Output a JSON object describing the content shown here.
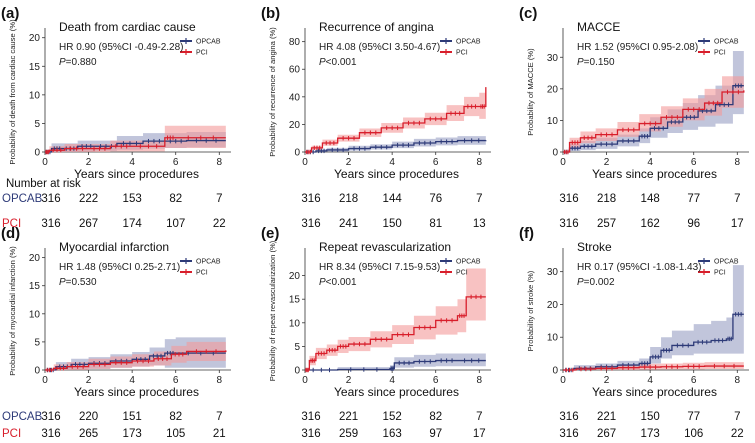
{
  "colors": {
    "opcab": "#2d3a78",
    "opcab_band": "#8e96bd",
    "pci": "#d81e2b",
    "pci_band": "#f39a9a",
    "risk_opcab_label": "#2d3a78",
    "risk_pci_label": "#d81e2b"
  },
  "chart_data": [
    {
      "type": "line",
      "panel_label": "(a)",
      "title": "Death from cardiac cause",
      "ylabel": "Probability of death from cardiac cause (%)",
      "xlabel": "Years since procedures",
      "ylim": [
        0,
        21
      ],
      "yticks": [
        0,
        5,
        10,
        15,
        20
      ],
      "xlim": [
        0,
        8.4
      ],
      "xticks": [
        0,
        2,
        4,
        6,
        8
      ],
      "legend": [
        "OPCAB",
        "PCI"
      ],
      "hr_text": "HR 0.90 (95%CI -0.49-2.28)",
      "p_label": "P",
      "p_value": "=0.880",
      "series": [
        {
          "name": "OPCAB",
          "x": [
            0,
            0.3,
            0.8,
            1.5,
            2.3,
            3.3,
            4.5,
            5.5,
            6.5,
            8.3
          ],
          "y": [
            0,
            0.6,
            0.6,
            1.0,
            1.0,
            1.5,
            1.9,
            1.9,
            2.0,
            2.0
          ],
          "lo": [
            0,
            0,
            0,
            0.1,
            0.2,
            0.4,
            0.6,
            0.7,
            0.8,
            0.8
          ],
          "hi": [
            0,
            1.5,
            1.5,
            2.0,
            2.0,
            2.8,
            3.3,
            3.3,
            3.5,
            3.5
          ]
        },
        {
          "name": "PCI",
          "x": [
            0,
            0.2,
            0.9,
            2.0,
            3.0,
            4.0,
            5.5,
            6.0,
            8.3
          ],
          "y": [
            0,
            0.3,
            0.6,
            0.6,
            1.0,
            1.0,
            2.5,
            2.5,
            2.5
          ],
          "lo": [
            0,
            0,
            0,
            0,
            0.1,
            0.1,
            0.7,
            0.7,
            0.7
          ],
          "hi": [
            0,
            1.0,
            1.4,
            1.4,
            2.0,
            2.0,
            4.6,
            4.6,
            4.6
          ]
        }
      ],
      "risk_table": {
        "header": "Number at risk",
        "rows": [
          {
            "label": "OPCAB",
            "values": [
              "316",
              "222",
              "153",
              "82",
              "7"
            ]
          },
          {
            "label": "PCI",
            "values": [
              "316",
              "267",
              "174",
              "107",
              "22"
            ]
          }
        ]
      }
    },
    {
      "type": "line",
      "panel_label": "(b)",
      "title": "Recurrence of angina",
      "ylabel": "Probability of recurrence of angina (%)",
      "xlabel": "Years since procedures",
      "ylim": [
        0,
        87
      ],
      "yticks": [
        0,
        20,
        40,
        60,
        80
      ],
      "xlim": [
        0,
        8.4
      ],
      "xticks": [
        0,
        2,
        4,
        6,
        8
      ],
      "legend": [
        "OPCAB",
        "PCI"
      ],
      "hr_text": "HR 4.08 (95%CI 3.50-4.67)",
      "p_label": "P",
      "p_value": "<0.001",
      "series": [
        {
          "name": "OPCAB",
          "x": [
            0,
            0.5,
            1.0,
            2.0,
            3.0,
            4.0,
            5.0,
            6.0,
            7.0,
            8.3
          ],
          "y": [
            0,
            0.8,
            1.5,
            2.5,
            3.5,
            5.0,
            6.5,
            7.5,
            8.3,
            8.5
          ],
          "lo": [
            0,
            0,
            0.3,
            1.0,
            1.8,
            2.8,
            4.0,
            4.8,
            5.3,
            5.5
          ],
          "hi": [
            0,
            2.0,
            3.0,
            4.5,
            5.5,
            7.5,
            9.5,
            10.5,
            11.5,
            12.0
          ]
        },
        {
          "name": "PCI",
          "x": [
            0,
            0.3,
            0.8,
            1.5,
            2.5,
            3.5,
            4.5,
            5.5,
            6.5,
            7.3,
            8.0,
            8.3
          ],
          "y": [
            0,
            3.0,
            6.5,
            10.0,
            14.0,
            17.5,
            21.0,
            24.0,
            28.0,
            33.0,
            33.0,
            47.0
          ],
          "lo": [
            0,
            1.5,
            4.5,
            7.5,
            11.0,
            14.0,
            17.0,
            19.5,
            22.5,
            26.0,
            24.0,
            33.0
          ],
          "hi": [
            0,
            4.5,
            9.0,
            12.5,
            17.0,
            21.0,
            25.0,
            28.5,
            34.0,
            40.0,
            43.0,
            59.0
          ]
        }
      ],
      "risk_table": {
        "header": "",
        "rows": [
          {
            "label": "",
            "values": [
              "316",
              "218",
              "144",
              "76",
              "7"
            ]
          },
          {
            "label": "",
            "values": [
              "316",
              "241",
              "150",
              "81",
              "13"
            ]
          }
        ]
      }
    },
    {
      "type": "line",
      "panel_label": "(c)",
      "title": "MACCE",
      "ylabel": "Probability of MACCE (%)",
      "xlabel": "Years since procedures",
      "ylim": [
        0,
        38
      ],
      "yticks": [
        0,
        10,
        20,
        30
      ],
      "xlim": [
        0,
        8.4
      ],
      "xticks": [
        0,
        2,
        4,
        6,
        8
      ],
      "legend": [
        "OPCAB",
        "PCI"
      ],
      "hr_text": "HR 1.52 (95%CI 0.95-2.08)",
      "p_label": "P",
      "p_value": "=0.150",
      "series": [
        {
          "name": "OPCAB",
          "x": [
            0,
            0.3,
            0.8,
            1.5,
            2.5,
            3.5,
            4.0,
            4.8,
            5.5,
            6.2,
            7.0,
            7.8,
            8.3
          ],
          "y": [
            0,
            1.2,
            1.8,
            2.5,
            3.5,
            5.0,
            7.5,
            9.5,
            11.0,
            13.0,
            15.0,
            21.0,
            21.0
          ],
          "lo": [
            0,
            0.3,
            0.6,
            1.0,
            1.8,
            2.8,
            4.5,
            6.0,
            7.0,
            8.0,
            9.0,
            12.0,
            12.0
          ],
          "hi": [
            0,
            2.5,
            3.5,
            4.5,
            5.5,
            7.5,
            11.0,
            13.5,
            15.5,
            18.0,
            21.0,
            32.0,
            35.0
          ]
        },
        {
          "name": "PCI",
          "x": [
            0,
            0.3,
            0.8,
            1.5,
            2.5,
            3.5,
            4.5,
            5.5,
            6.5,
            7.3,
            8.3
          ],
          "y": [
            0,
            3.0,
            4.5,
            5.5,
            7.0,
            9.0,
            11.0,
            13.5,
            15.5,
            19.0,
            19.5
          ],
          "lo": [
            0,
            1.5,
            2.8,
            3.5,
            4.8,
            6.5,
            8.0,
            10.0,
            11.5,
            14.0,
            14.0
          ],
          "hi": [
            0,
            4.5,
            6.5,
            7.5,
            9.5,
            12.0,
            14.5,
            17.0,
            20.0,
            24.0,
            25.0
          ]
        }
      ],
      "risk_table": {
        "header": "",
        "rows": [
          {
            "label": "",
            "values": [
              "316",
              "218",
              "148",
              "77",
              "7"
            ]
          },
          {
            "label": "",
            "values": [
              "316",
              "257",
              "162",
              "96",
              "17"
            ]
          }
        ]
      }
    },
    {
      "type": "line",
      "panel_label": "(d)",
      "title": "Myocardial infarction",
      "ylabel": "Probability of myocardial infarction (%)",
      "xlabel": "Years since procedures",
      "ylim": [
        0,
        21
      ],
      "yticks": [
        0,
        5,
        10,
        15,
        20
      ],
      "xlim": [
        0,
        8.4
      ],
      "xticks": [
        0,
        2,
        4,
        6,
        8
      ],
      "legend": [
        "OPCAB",
        "PCI"
      ],
      "hr_text": "HR 1.48 (95%CI 0.25-2.71)",
      "p_label": "P",
      "p_value": "=0.530",
      "series": [
        {
          "name": "OPCAB",
          "x": [
            0,
            0.5,
            1.2,
            2.0,
            3.0,
            4.0,
            4.8,
            5.5,
            6.0,
            8.3
          ],
          "y": [
            0,
            0.6,
            1.0,
            1.2,
            1.6,
            1.9,
            2.5,
            3.0,
            3.0,
            3.0
          ],
          "lo": [
            0,
            0,
            0.1,
            0.2,
            0.4,
            0.6,
            0.8,
            0.4,
            0.4,
            0.4
          ],
          "hi": [
            0,
            1.4,
            2.0,
            2.3,
            2.8,
            3.2,
            4.0,
            5.5,
            5.8,
            6.0
          ]
        },
        {
          "name": "PCI",
          "x": [
            0,
            0.4,
            1.0,
            2.0,
            3.0,
            4.0,
            5.0,
            5.8,
            6.5,
            8.3
          ],
          "y": [
            0,
            0.3,
            0.6,
            1.0,
            1.3,
            1.6,
            2.0,
            2.8,
            3.3,
            3.5
          ],
          "lo": [
            0,
            0,
            0,
            0.2,
            0.4,
            0.6,
            0.8,
            1.3,
            1.6,
            1.8
          ],
          "hi": [
            0,
            1.0,
            1.4,
            2.0,
            2.4,
            2.8,
            3.3,
            4.3,
            5.0,
            5.3
          ]
        }
      ],
      "risk_table": {
        "header": "",
        "rows": [
          {
            "label": "OPCAB",
            "values": [
              "316",
              "220",
              "151",
              "82",
              "7"
            ]
          },
          {
            "label": "PCI",
            "values": [
              "316",
              "265",
              "173",
              "105",
              "21"
            ]
          }
        ]
      }
    },
    {
      "type": "line",
      "panel_label": "(e)",
      "title": "Repeat revascularization",
      "ylabel": "Probability of repeat revascularization (%)",
      "xlabel": "Years since procedures",
      "ylim": [
        0,
        25
      ],
      "yticks": [
        0,
        5,
        10,
        15,
        20
      ],
      "xlim": [
        0,
        8.4
      ],
      "xticks": [
        0,
        2,
        4,
        6,
        8
      ],
      "legend": [
        "OPCAB",
        "PCI"
      ],
      "hr_text": "HR 8.34 (95%CI 7.15-9.53)",
      "p_label": "P",
      "p_value": "<0.001",
      "series": [
        {
          "name": "OPCAB",
          "x": [
            0,
            1.5,
            3.9,
            4.1,
            5.0,
            6.0,
            7.0,
            8.3
          ],
          "y": [
            0,
            0.1,
            0.3,
            1.5,
            1.8,
            2.0,
            2.0,
            2.0
          ],
          "lo": [
            0,
            0,
            0,
            0.5,
            0.7,
            0.8,
            0.8,
            0.8
          ],
          "hi": [
            0,
            0.6,
            1.0,
            2.7,
            3.2,
            3.5,
            3.5,
            3.5
          ]
        },
        {
          "name": "PCI",
          "x": [
            0,
            0.2,
            0.5,
            1.0,
            1.5,
            2.0,
            3.0,
            4.0,
            5.0,
            6.0,
            7.0,
            7.4,
            8.3
          ],
          "y": [
            0,
            2.0,
            3.5,
            4.2,
            5.0,
            5.5,
            6.5,
            7.5,
            9.0,
            10.5,
            11.5,
            15.5,
            15.5
          ],
          "lo": [
            0,
            1.0,
            2.3,
            3.0,
            3.6,
            4.0,
            4.8,
            5.5,
            6.5,
            7.5,
            8.0,
            10.5,
            10.5
          ],
          "hi": [
            0,
            3.0,
            4.7,
            5.4,
            6.4,
            7.0,
            8.2,
            9.5,
            11.5,
            13.5,
            15.0,
            21.5,
            23.0
          ]
        }
      ],
      "risk_table": {
        "header": "",
        "rows": [
          {
            "label": "",
            "values": [
              "316",
              "221",
              "152",
              "82",
              "7"
            ]
          },
          {
            "label": "",
            "values": [
              "316",
              "259",
              "163",
              "97",
              "17"
            ]
          }
        ]
      }
    },
    {
      "type": "line",
      "panel_label": "(f)",
      "title": "Stroke",
      "ylabel": "Probability of stroke (%)",
      "xlabel": "Years since procedures",
      "ylim": [
        0,
        36
      ],
      "yticks": [
        0,
        10,
        20,
        30
      ],
      "xlim": [
        0,
        8.4
      ],
      "xticks": [
        0,
        2,
        4,
        6,
        8
      ],
      "legend": [
        "OPCAB",
        "PCI"
      ],
      "hr_text": "HR 0.17 (95%CI -1.08-1.43)",
      "p_label": "P",
      "p_value": "=0.002",
      "series": [
        {
          "name": "OPCAB",
          "x": [
            0,
            0.5,
            1.5,
            2.5,
            3.5,
            4.0,
            4.5,
            5.0,
            6.0,
            6.8,
            7.5,
            7.8,
            8.3
          ],
          "y": [
            0,
            0.5,
            1.0,
            1.5,
            2.0,
            4.0,
            6.0,
            7.5,
            8.5,
            9.0,
            9.5,
            17.0,
            17.0
          ],
          "lo": [
            0,
            0,
            0.2,
            0.5,
            0.8,
            2.0,
            3.5,
            4.5,
            5.0,
            5.0,
            5.0,
            5.0,
            5.0
          ],
          "hi": [
            0,
            1.5,
            2.0,
            2.8,
            3.5,
            7.0,
            10.0,
            12.0,
            14.0,
            15.0,
            16.0,
            32.0,
            34.0
          ]
        },
        {
          "name": "PCI",
          "x": [
            0,
            0.6,
            1.5,
            2.5,
            3.5,
            4.5,
            5.5,
            6.5,
            8.3
          ],
          "y": [
            0,
            0.3,
            0.5,
            0.7,
            0.9,
            1.0,
            1.1,
            1.2,
            1.2
          ],
          "lo": [
            0,
            0,
            0,
            0,
            0.1,
            0.2,
            0.2,
            0.3,
            0.3
          ],
          "hi": [
            0,
            1.0,
            1.3,
            1.6,
            1.9,
            2.0,
            2.2,
            2.4,
            2.5
          ]
        }
      ],
      "risk_table": {
        "header": "",
        "rows": [
          {
            "label": "",
            "values": [
              "316",
              "221",
              "150",
              "77",
              "7"
            ]
          },
          {
            "label": "",
            "values": [
              "316",
              "267",
              "173",
              "106",
              "22"
            ]
          }
        ]
      }
    }
  ]
}
